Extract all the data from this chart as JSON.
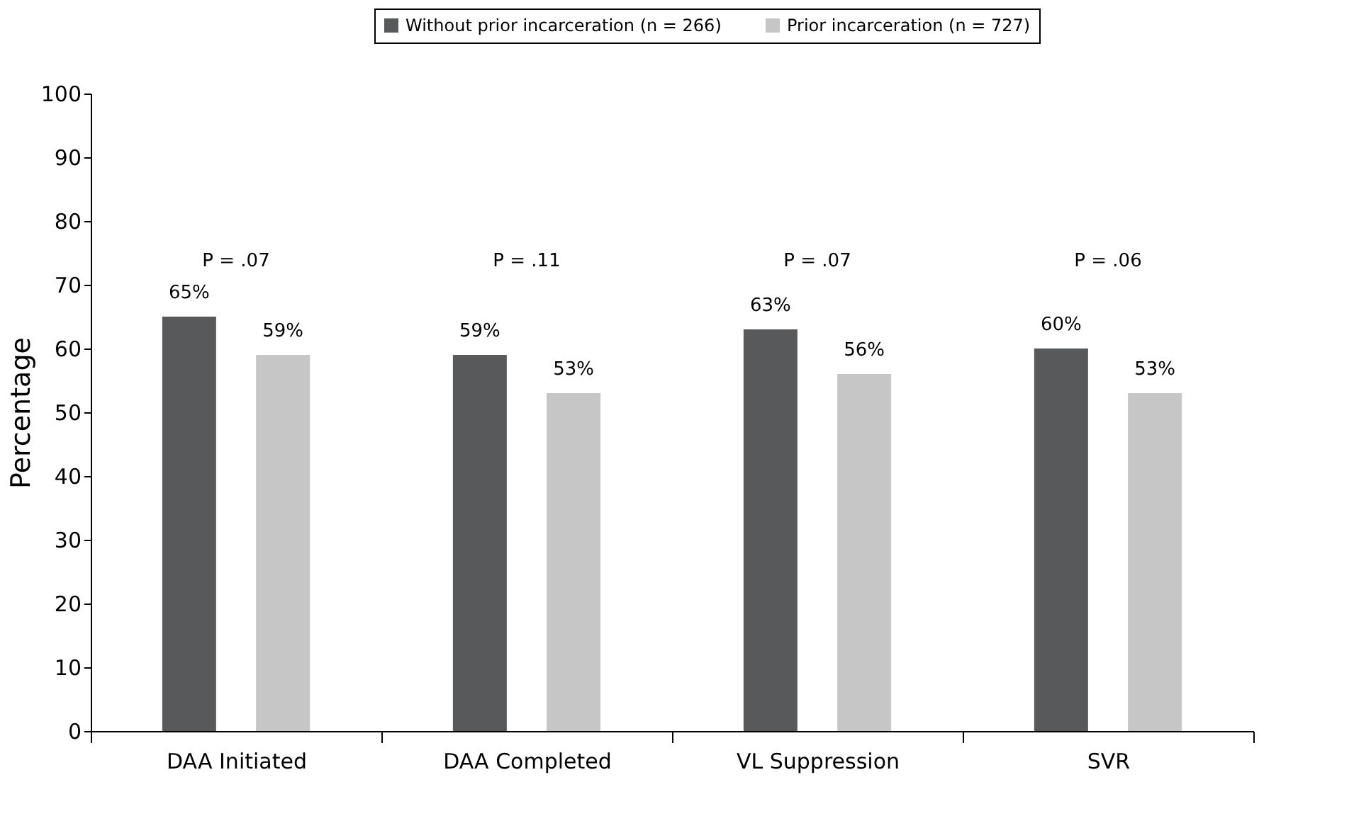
{
  "chart_data": {
    "type": "bar",
    "ylabel": "Percentage",
    "categories": [
      "DAA Initiated",
      "DAA Completed",
      "VL Suppression",
      "SVR"
    ],
    "series": [
      {
        "name": "Without prior incarceration (n = 266)",
        "color": "#58595b",
        "values": [
          65,
          59,
          63,
          60
        ],
        "value_labels": [
          "65%",
          "59%",
          "63%",
          "60%"
        ]
      },
      {
        "name": "Prior incarceration (n = 727)",
        "color": "#c6c6c6",
        "values": [
          59,
          53,
          56,
          53
        ],
        "value_labels": [
          "59%",
          "53%",
          "56%",
          "53%"
        ]
      }
    ],
    "ylim": [
      0,
      100
    ],
    "yticks": [
      0,
      10,
      20,
      30,
      40,
      50,
      60,
      70,
      80,
      90,
      100
    ],
    "grid": false,
    "legend": "top",
    "annotations": [
      "P = .07",
      "P = .11",
      "P = .07",
      "P = .06"
    ]
  }
}
